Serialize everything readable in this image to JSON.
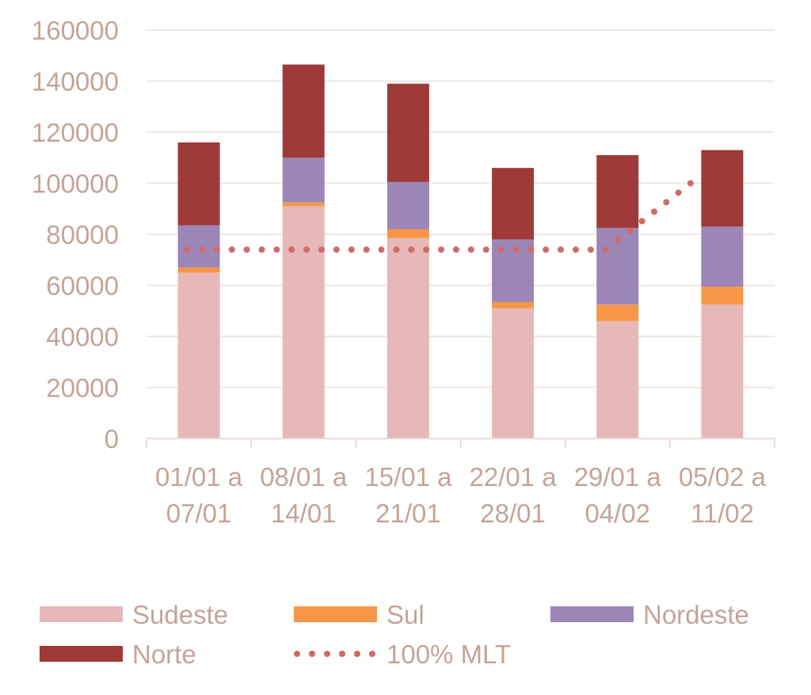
{
  "chart_data": {
    "type": "bar",
    "stacked": true,
    "title": "",
    "xlabel": "",
    "ylabel": "",
    "ylim": [
      0,
      160000
    ],
    "yticks": [
      "0",
      "20000",
      "40000",
      "60000",
      "80000",
      "100000",
      "120000",
      "140000",
      "160000"
    ],
    "categories": [
      [
        "01/01 a",
        "07/01"
      ],
      [
        "08/01 a",
        "14/01"
      ],
      [
        "15/01 a",
        "21/01"
      ],
      [
        "22/01 a",
        "28/01"
      ],
      [
        "29/01 a",
        "04/02"
      ],
      [
        "05/02 a",
        "11/02"
      ]
    ],
    "series": [
      {
        "name": "Sudeste",
        "color": "#e6b8b7",
        "values": [
          65000,
          91000,
          78500,
          51000,
          46000,
          52500
        ]
      },
      {
        "name": "Sul",
        "color": "#f79646",
        "values": [
          2000,
          1500,
          3500,
          2500,
          6500,
          7000
        ]
      },
      {
        "name": "Nordeste",
        "color": "#9b86b7",
        "values": [
          16500,
          17500,
          18500,
          24500,
          30000,
          23500
        ]
      },
      {
        "name": "Norte",
        "color": "#9e3a37",
        "values": [
          32500,
          36500,
          38500,
          28000,
          28500,
          30000
        ]
      }
    ],
    "line_series": {
      "name": "100% MLT",
      "color": "#d06a66",
      "style": "dotted",
      "values": [
        74000,
        74000,
        74000,
        74000,
        74000,
        100000
      ]
    },
    "grid": true,
    "legend_position": "bottom"
  }
}
